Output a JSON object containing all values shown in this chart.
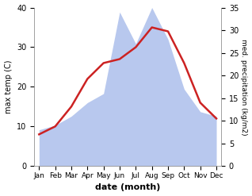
{
  "months": [
    "Jan",
    "Feb",
    "Mar",
    "Apr",
    "May",
    "Jun",
    "Jul",
    "Aug",
    "Sep",
    "Oct",
    "Nov",
    "Dec"
  ],
  "month_positions": [
    0,
    1,
    2,
    3,
    4,
    5,
    6,
    7,
    8,
    9,
    10,
    11
  ],
  "temp": [
    8,
    10,
    15,
    22,
    26,
    27,
    30,
    35,
    34,
    26,
    16,
    12
  ],
  "precip": [
    8,
    9,
    11,
    14,
    16,
    34,
    27,
    35,
    28,
    17,
    12,
    11
  ],
  "temp_color": "#cc2222",
  "precip_color": "#b8c8ee",
  "temp_ylim": [
    0,
    40
  ],
  "precip_ylim": [
    0,
    35
  ],
  "temp_yticks": [
    0,
    10,
    20,
    30,
    40
  ],
  "precip_yticks": [
    0,
    5,
    10,
    15,
    20,
    25,
    30,
    35
  ],
  "xlabel": "date (month)",
  "ylabel_left": "max temp (C)",
  "ylabel_right": "med. precipitation (kg/m2)",
  "bg_color": "#ffffff",
  "line_width": 1.8
}
